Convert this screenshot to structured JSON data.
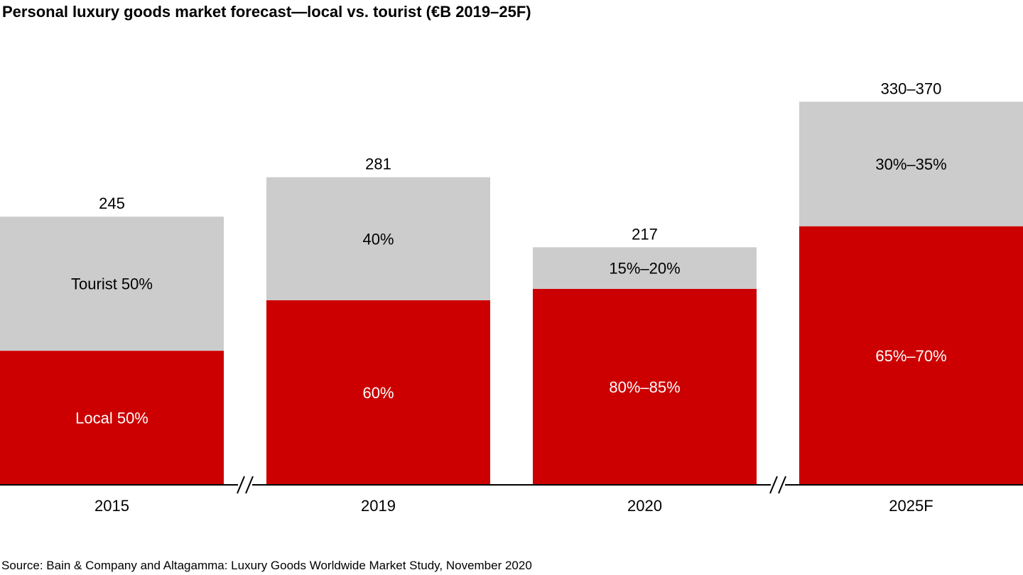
{
  "title": "Personal luxury goods market forecast—local vs. tourist (€B 2019–25F)",
  "source": "Source: Bain & Company and Altagamma: Luxury Goods Worldwide Market Study, November 2020",
  "colors": {
    "local": "#cc0000",
    "tourist": "#cccccc",
    "axis": "#000000",
    "local_label": "#ffffff",
    "tourist_label": "#000000"
  },
  "chart_data": {
    "type": "bar",
    "stacked": true,
    "title": "Personal luxury goods market forecast—local vs. tourist (€B 2019–25F)",
    "xlabel": "",
    "ylabel": "",
    "ylim": [
      0,
      370
    ],
    "grid": false,
    "legend": "none",
    "axis_breaks": [
      "between 2015 and 2019",
      "between 2020 and 2025F"
    ],
    "categories": [
      "2015",
      "2019",
      "2020",
      "2025F"
    ],
    "totals": [
      245,
      281,
      217,
      350
    ],
    "total_labels": [
      "245",
      "281",
      "217",
      "330–370"
    ],
    "series": [
      {
        "key": "local",
        "values": [
          122.5,
          168.6,
          179,
          236.25
        ],
        "labels": [
          "Local 50%",
          "60%",
          "80%–85%",
          "65%–70%"
        ]
      },
      {
        "key": "tourist",
        "values": [
          122.5,
          112.4,
          38,
          113.75
        ],
        "labels": [
          "Tourist 50%",
          "40%",
          "15%–20%",
          "30%–35%"
        ]
      }
    ]
  }
}
